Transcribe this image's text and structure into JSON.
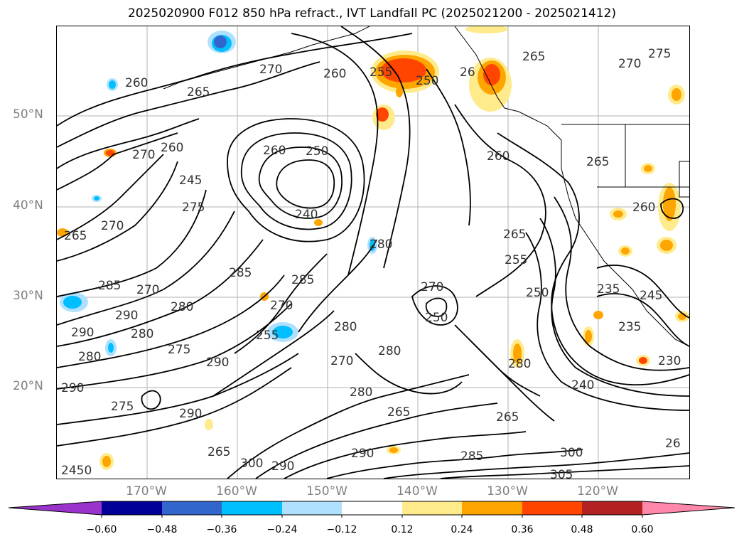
{
  "title": "2025020900 F012 850 hPa refract., IVT Landfall PC (2025021200 - 2025021412)",
  "lat_labels": [
    "50°N",
    "40°N",
    "30°N",
    "20°N"
  ],
  "lon_labels": [
    "170°W",
    "160°W",
    "150°W",
    "140°W",
    "130°W",
    "120°W"
  ],
  "colorbar": {
    "ticks": [
      "−0.60",
      "−0.48",
      "−0.36",
      "−0.24",
      "−0.12",
      "0.12",
      "0.24",
      "0.36",
      "0.48",
      "0.60"
    ],
    "colors": [
      "#9933cc",
      "#000099",
      "#3366cc",
      "#00bfff",
      "#b0e0ff",
      "#ffffff",
      "#ffeb8c",
      "#ffa500",
      "#ff4500",
      "#b22222",
      "#ff88aa"
    ]
  },
  "contour_labels": {
    "label_1": "260",
    "label_2": "270",
    "label_3": "265",
    "label_4": "260",
    "label_5": "255",
    "label_6": "250",
    "label_7": "26",
    "label_8": "265",
    "label_9": "270",
    "label_10": "275",
    "label_11": "260",
    "label_12": "270",
    "label_13": "260",
    "label_14": "250",
    "label_15": "260",
    "label_16": "245",
    "label_17": "240",
    "label_18": "275",
    "label_19": "265",
    "label_20": "270",
    "label_21": "265",
    "label_22": "280",
    "label_23": "285",
    "label_24": "285",
    "label_25": "260",
    "label_26": "265",
    "label_27": "255",
    "label_28": "250",
    "label_29": "235",
    "label_30": "245",
    "label_31": "270",
    "label_32": "285",
    "label_33": "270",
    "label_34": "290",
    "label_35": "280",
    "label_36": "280",
    "label_37": "270",
    "label_38": "255",
    "label_39": "250",
    "label_40": "235",
    "label_41": "280",
    "label_42": "290",
    "label_43": "275",
    "label_44": "290",
    "label_45": "280",
    "label_46": "270",
    "label_47": "280",
    "label_48": "280",
    "label_49": "240",
    "label_50": "230",
    "label_51": "290",
    "label_52": "275",
    "label_53": "265",
    "label_54": "290",
    "label_55": "265",
    "label_56": "285",
    "label_57": "290",
    "label_58": "300",
    "label_59": "305",
    "label_60": "2450",
    "label_61": "300",
    "label_62": "290",
    "label_63": "26",
    "label_64": "280",
    "label_65": "265"
  }
}
